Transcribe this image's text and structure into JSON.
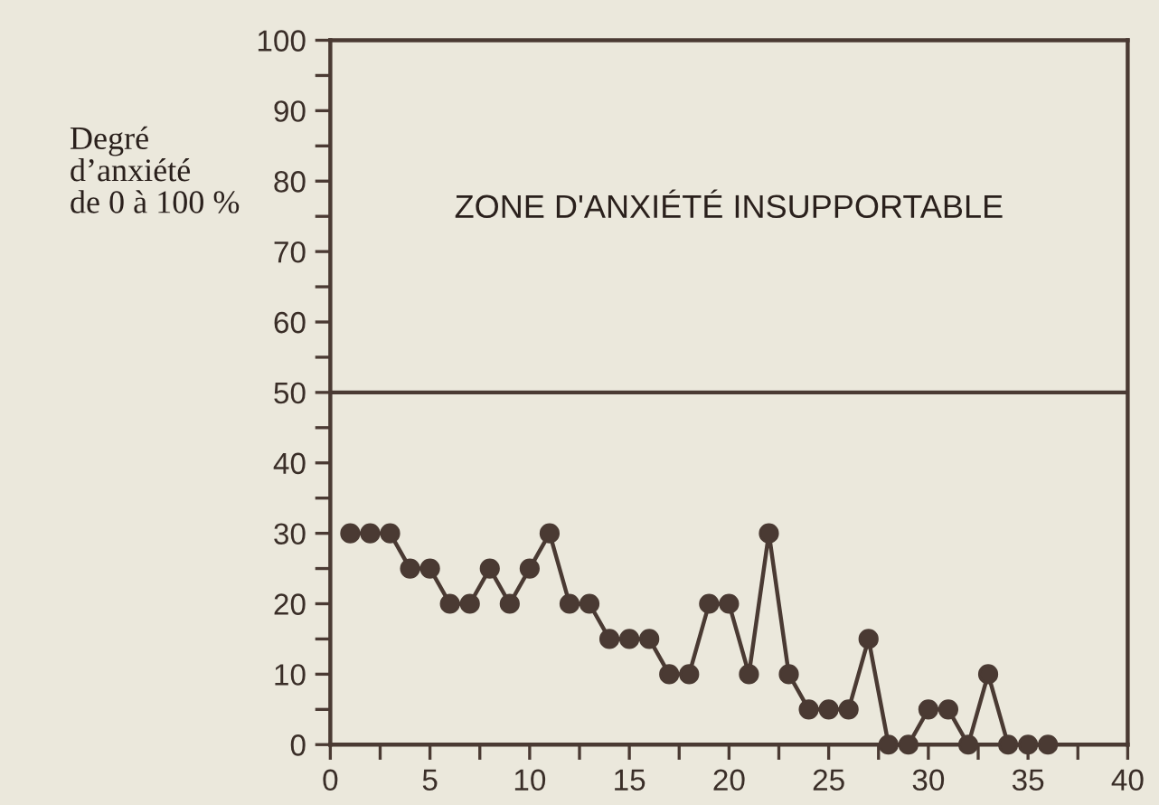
{
  "chart_data": {
    "type": "line",
    "ylabel": "Degré\nd’anxiété\nde 0 à 100 %",
    "x": [
      1,
      2,
      3,
      4,
      5,
      6,
      7,
      8,
      9,
      10,
      11,
      12,
      13,
      14,
      15,
      16,
      17,
      18,
      19,
      20,
      21,
      22,
      23,
      24,
      25,
      26,
      27,
      28,
      29,
      30,
      31,
      32,
      33,
      34,
      35,
      36
    ],
    "series": [
      {
        "color": "#4a3a33",
        "values": [
          30,
          30,
          30,
          25,
          25,
          20,
          20,
          25,
          20,
          25,
          30,
          20,
          20,
          15,
          15,
          15,
          10,
          10,
          20,
          20,
          10,
          30,
          10,
          5,
          5,
          5,
          15,
          0,
          0,
          5,
          5,
          0,
          10,
          0,
          0,
          0
        ]
      }
    ],
    "marker": "circle",
    "line_style": "solid",
    "grid": false,
    "legend": false,
    "xlim": [
      0,
      40
    ],
    "xticks": [
      0,
      {
        "value": 2.5,
        "label": null
      },
      5,
      {
        "value": 7.5,
        "label": null
      },
      10,
      {
        "value": 12.5,
        "label": null
      },
      15,
      {
        "value": 17.5,
        "label": null
      },
      20,
      {
        "value": 22.5,
        "label": null
      },
      25,
      {
        "value": 27.5,
        "label": null
      },
      30,
      {
        "value": 32.5,
        "label": null
      },
      35,
      {
        "value": 37.5,
        "label": null
      },
      40
    ],
    "ylim": [
      0,
      100
    ],
    "yticks": [
      0,
      {
        "value": 5,
        "label": null
      },
      10,
      {
        "value": 15,
        "label": null
      },
      20,
      {
        "value": 25,
        "label": null
      },
      30,
      {
        "value": 35,
        "label": null
      },
      40,
      {
        "value": 45,
        "label": null
      },
      50,
      {
        "value": 55,
        "label": null
      },
      60,
      {
        "value": 65,
        "label": null
      },
      70,
      {
        "value": 75,
        "label": null
      },
      80,
      {
        "value": 85,
        "label": null
      },
      90,
      {
        "value": 95,
        "label": null
      },
      100
    ],
    "ref_lines": [
      {
        "axis": "y",
        "value": 50,
        "label": "ZONE D'ANXIÉTÉ INSUPPORTABLE",
        "color": "#4a3a33",
        "line_style": "solid"
      }
    ]
  }
}
